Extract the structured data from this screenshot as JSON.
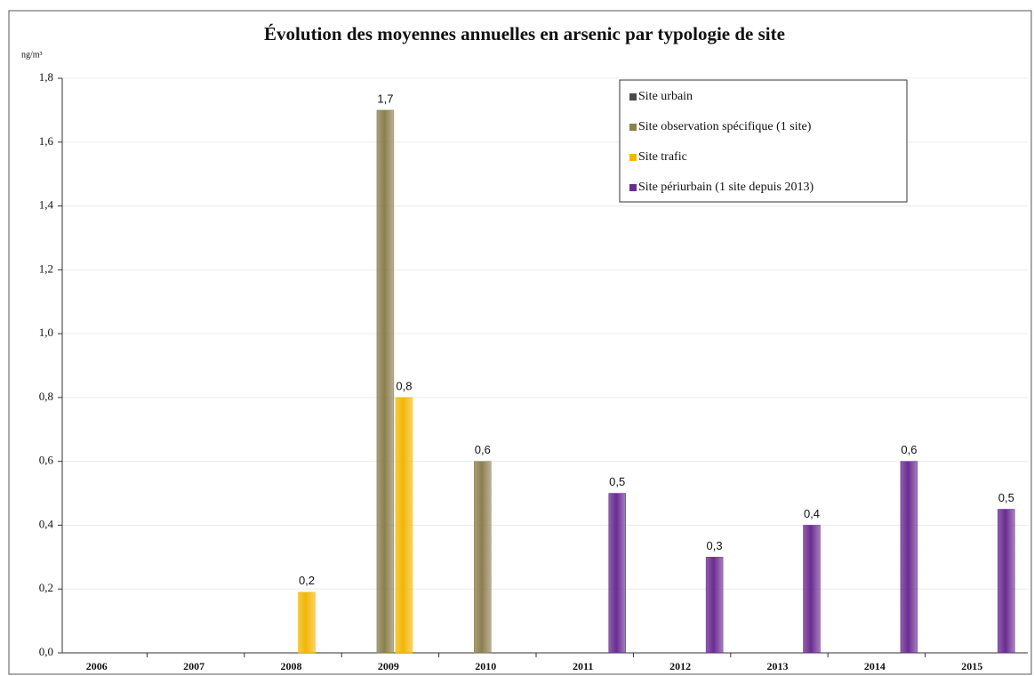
{
  "chart_data": {
    "type": "bar",
    "title": "Évolution des moyennes annuelles en arsenic par typologie de site",
    "y_unit": "ng/m³",
    "categories": [
      "2006",
      "2007",
      "2008",
      "2009",
      "2010",
      "2011",
      "2012",
      "2013",
      "2014",
      "2015"
    ],
    "series": [
      {
        "name": "Site urbain",
        "color": "#4a4a4a",
        "values": [
          null,
          null,
          null,
          null,
          null,
          null,
          null,
          null,
          null,
          null
        ]
      },
      {
        "name": "Site observation spécifique (1 site)",
        "color": "#8c7f4e",
        "values": [
          null,
          null,
          null,
          1.7,
          0.6,
          null,
          null,
          null,
          null,
          null
        ],
        "value_labels": [
          null,
          null,
          null,
          "1,7",
          "0,6",
          null,
          null,
          null,
          null,
          null
        ]
      },
      {
        "name": "Site trafic",
        "color": "#f2b705",
        "values": [
          null,
          null,
          0.19,
          0.8,
          null,
          null,
          null,
          null,
          null,
          null
        ],
        "value_labels": [
          null,
          null,
          "0,2",
          "0,8",
          null,
          null,
          null,
          null,
          null,
          null
        ]
      },
      {
        "name": "Site périurbain (1 site depuis 2013)",
        "color": "#6a2c91",
        "values": [
          null,
          null,
          null,
          null,
          null,
          0.5,
          0.3,
          0.4,
          0.6,
          0.45
        ],
        "value_labels": [
          null,
          null,
          null,
          null,
          null,
          "0,5",
          "0,3",
          "0,4",
          "0,6",
          "0,5"
        ]
      }
    ],
    "ylim": [
      0,
      1.8
    ],
    "yticks": [
      {
        "value": 0,
        "label": "0,0"
      },
      {
        "value": 0.2,
        "label": "0,2"
      },
      {
        "value": 0.4,
        "label": "0,4"
      },
      {
        "value": 0.6,
        "label": "0,6"
      },
      {
        "value": 0.8,
        "label": "0,8"
      },
      {
        "value": 1.0,
        "label": "1,0"
      },
      {
        "value": 1.2,
        "label": "1,2"
      },
      {
        "value": 1.4,
        "label": "1,4"
      },
      {
        "value": 1.6,
        "label": "1,6"
      },
      {
        "value": 1.8,
        "label": "1,8"
      }
    ],
    "grid": true,
    "legend": "top-right"
  }
}
